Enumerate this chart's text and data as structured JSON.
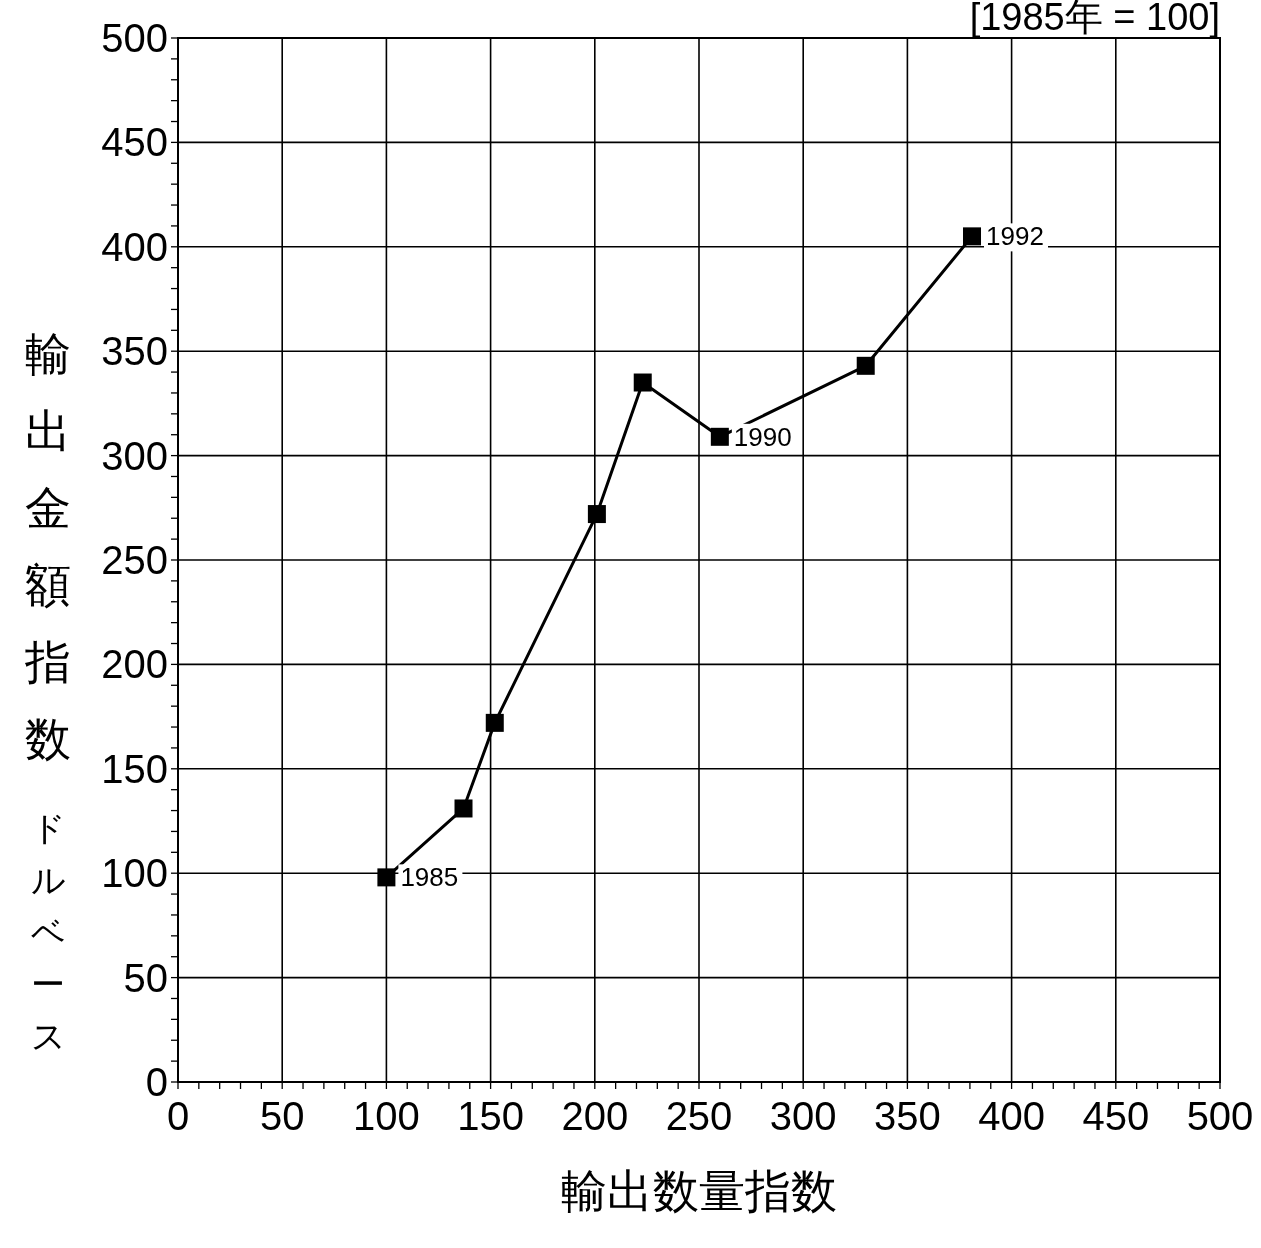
{
  "chart_data": {
    "type": "line",
    "xlabel": "輸出数量指数",
    "ylabel": "輸出金額指数",
    "x": [
      100,
      137,
      152,
      201,
      223,
      260,
      330,
      381
    ],
    "values": [
      98,
      131,
      172,
      272,
      335,
      309,
      343,
      405
    ],
    "color": "#000000",
    "marker": "square",
    "line_style": "solid",
    "grid": true,
    "xlim": [
      0,
      500
    ],
    "ylim": [
      0,
      500
    ],
    "xticks": [
      0,
      50,
      100,
      150,
      200,
      250,
      300,
      350,
      400,
      450,
      500
    ],
    "yticks": [
      0,
      50,
      100,
      150,
      200,
      250,
      300,
      350,
      400,
      450,
      500
    ],
    "annotations": [
      "[1985年 = 100]",
      "ドルベース",
      {
        "text": "1985",
        "x": 100,
        "y": 98
      },
      {
        "text": "1990",
        "x": 260,
        "y": 309
      },
      {
        "text": "1992",
        "x": 381,
        "y": 405
      }
    ]
  }
}
